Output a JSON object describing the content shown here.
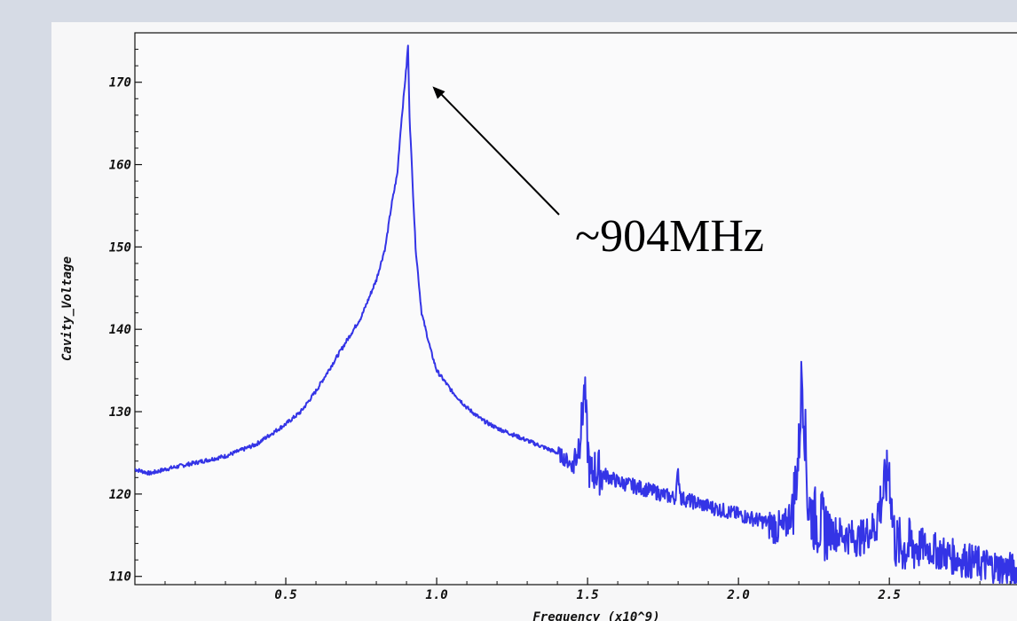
{
  "chart_data": {
    "type": "line",
    "title": "",
    "xlabel": "Frequency (x10^9)",
    "ylabel": "Cavity_Voltage",
    "xlim": [
      0.0,
      2.97
    ],
    "ylim": [
      109,
      176
    ],
    "x_ticks": [
      0.5,
      1.0,
      1.5,
      2.0,
      2.5
    ],
    "x_tick_labels": [
      "0.5",
      "1.0",
      "1.5",
      "2.0",
      "2.5"
    ],
    "y_ticks": [
      110,
      120,
      130,
      140,
      150,
      160,
      170
    ],
    "y_tick_labels": [
      "110",
      "120",
      "130",
      "140",
      "150",
      "160",
      "170"
    ],
    "grid": false,
    "series": [
      {
        "color": "#3434e6",
        "x": [
          0.0,
          0.05,
          0.1,
          0.2,
          0.3,
          0.4,
          0.5,
          0.55,
          0.6,
          0.65,
          0.7,
          0.75,
          0.8,
          0.83,
          0.85,
          0.87,
          0.88,
          0.89,
          0.9,
          0.905,
          0.91,
          0.92,
          0.93,
          0.95,
          0.98,
          1.0,
          1.05,
          1.1,
          1.15,
          1.2,
          1.3,
          1.4,
          1.45,
          1.47,
          1.48,
          1.49,
          1.5,
          1.51,
          1.52,
          1.55,
          1.6,
          1.7,
          1.79,
          1.8,
          1.81,
          1.9,
          2.0,
          2.1,
          2.15,
          2.18,
          2.2,
          2.21,
          2.22,
          2.23,
          2.25,
          2.3,
          2.4,
          2.45,
          2.5,
          2.51,
          2.52,
          2.55,
          2.6,
          2.7,
          2.8,
          2.9,
          2.97
        ],
        "y": [
          123,
          122.5,
          123,
          123.8,
          124.6,
          126,
          128.5,
          130,
          132.5,
          135.5,
          138.5,
          141.5,
          146,
          150,
          155,
          159,
          164,
          168,
          172,
          174.5,
          166,
          158,
          150,
          142,
          137.5,
          135,
          132.5,
          130.5,
          129,
          128,
          126.5,
          125,
          123.5,
          126,
          128.5,
          132.8,
          126,
          121.5,
          123,
          122.5,
          121.5,
          120.5,
          119.5,
          122.5,
          119.5,
          118.5,
          117.5,
          116.5,
          115.5,
          118.5,
          125,
          135,
          128,
          119,
          117,
          115.5,
          114.5,
          116,
          123,
          117,
          114,
          113.5,
          113.8,
          112.5,
          111.5,
          110.8,
          110
        ]
      }
    ],
    "annotation": {
      "text": "~904MHz",
      "x": 0.904,
      "y": 174.5
    }
  }
}
